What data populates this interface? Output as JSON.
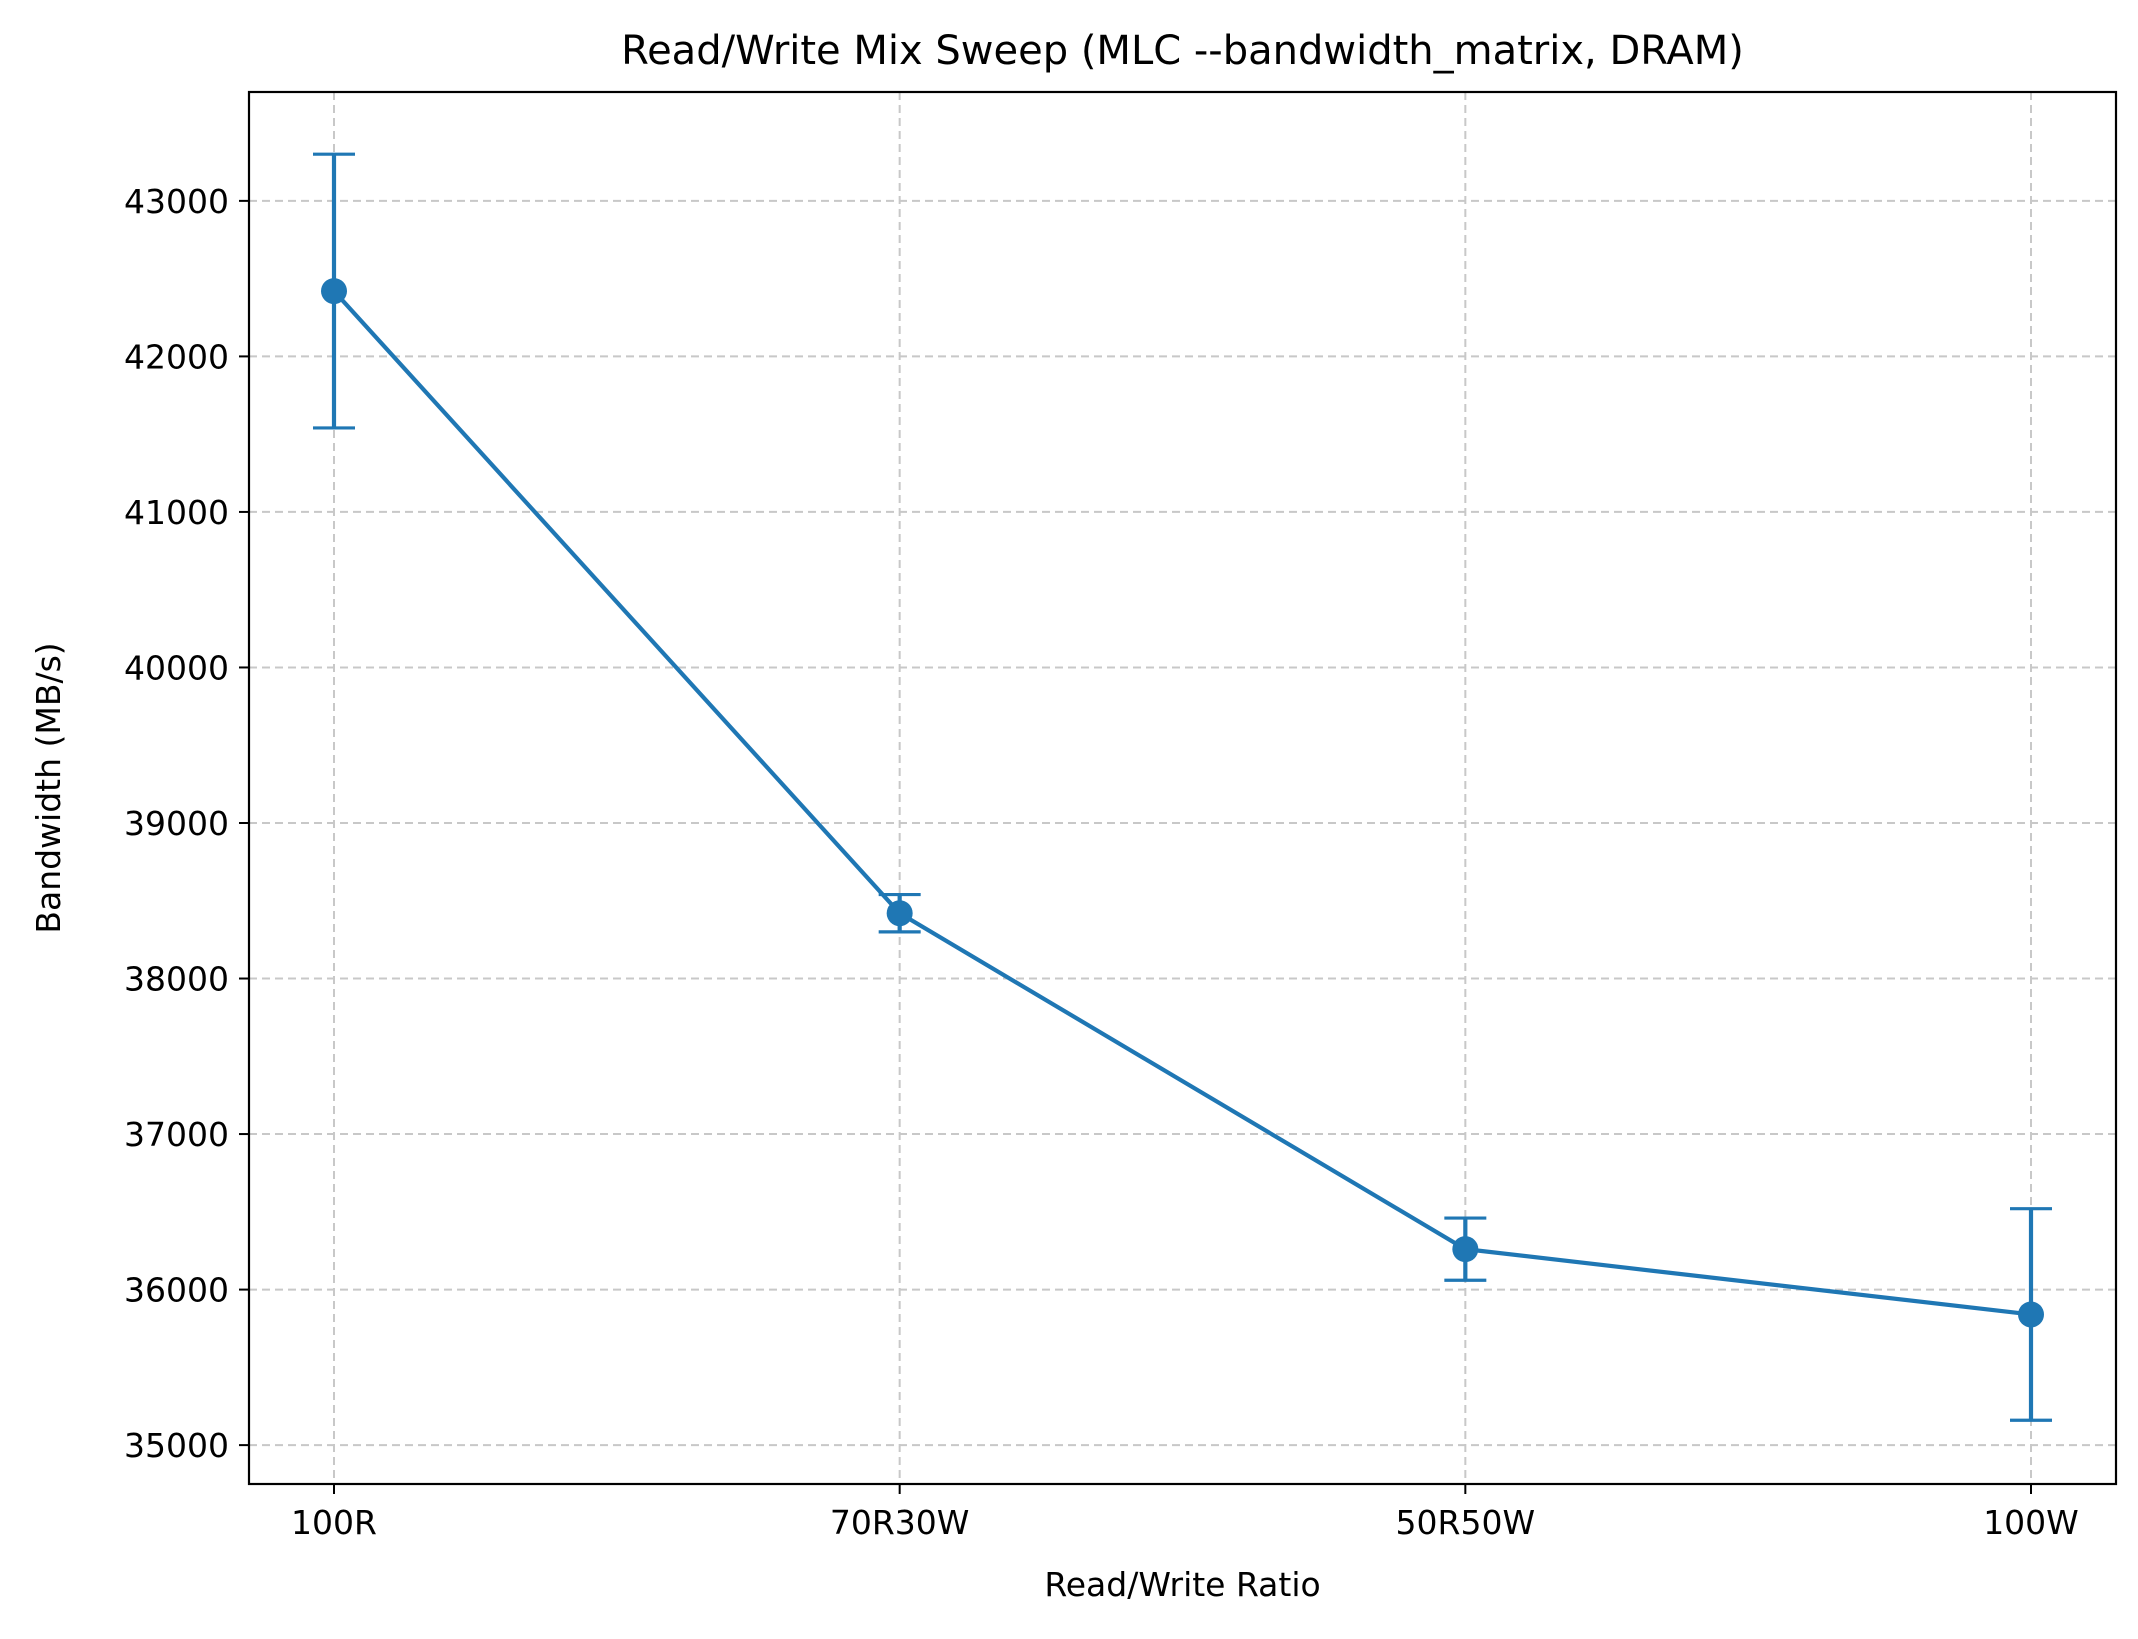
{
  "chart_data": {
    "type": "line",
    "title": "Read/Write Mix Sweep (MLC --bandwidth_matrix, DRAM)",
    "xlabel": "Read/Write Ratio",
    "ylabel": "Bandwidth (MB/s)",
    "categories": [
      "100R",
      "70R30W",
      "50R50W",
      "100W"
    ],
    "series": [
      {
        "values": [
          42420,
          38420,
          36260,
          35840
        ],
        "error_low": [
          41540,
          38300,
          36060,
          35160
        ],
        "error_high": [
          43300,
          38540,
          36460,
          36520
        ],
        "color": "#1f77b4",
        "marker": "circle"
      }
    ],
    "yticks": [
      35000,
      36000,
      37000,
      38000,
      39000,
      40000,
      41000,
      42000,
      43000
    ],
    "ylim": [
      34750,
      43700
    ],
    "grid": true,
    "grid_style": "dashed",
    "legend": "none"
  }
}
